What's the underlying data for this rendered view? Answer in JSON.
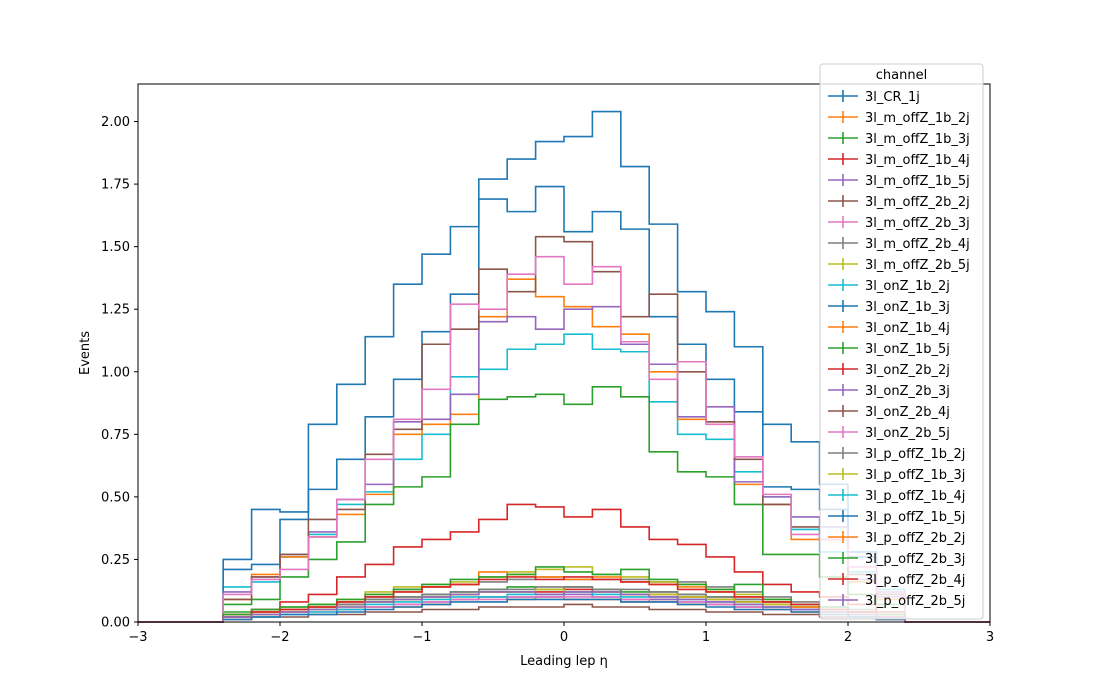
{
  "chart_data": {
    "type": "line",
    "drawstyle": "steps-post",
    "xlabel": "Leading lep η",
    "ylabel": "Events",
    "xlim": [
      -3,
      3
    ],
    "ylim": [
      0,
      2.15
    ],
    "xticks": [
      -3,
      -2,
      -1,
      0,
      1,
      2,
      3
    ],
    "xtick_labels": [
      "−3",
      "−2",
      "−1",
      "0",
      "1",
      "2",
      "3"
    ],
    "yticks": [
      0,
      0.25,
      0.5,
      0.75,
      1.0,
      1.25,
      1.5,
      1.75,
      2.0
    ],
    "ytick_labels": [
      "0.00",
      "0.25",
      "0.50",
      "0.75",
      "1.00",
      "1.25",
      "1.50",
      "1.75",
      "2.00"
    ],
    "grid": false,
    "legend": {
      "title": "channel",
      "placement": "top-right"
    },
    "x_edges": [
      -3.0,
      -2.8,
      -2.6,
      -2.4,
      -2.2,
      -2.0,
      -1.8,
      -1.6,
      -1.4,
      -1.2,
      -1.0,
      -0.8,
      -0.6,
      -0.4,
      -0.2,
      0.0,
      0.2,
      0.4,
      0.6,
      0.8,
      1.0,
      1.2,
      1.4,
      1.6,
      1.8,
      2.0,
      2.2,
      2.4,
      2.6,
      2.8,
      3.0
    ],
    "series": [
      {
        "name": "3l_CR_1j",
        "color": "#1f77b4",
        "values": [
          0,
          0,
          0,
          0.25,
          0.45,
          0.44,
          0.79,
          0.95,
          1.14,
          1.35,
          1.47,
          1.58,
          1.77,
          1.85,
          1.92,
          1.94,
          2.04,
          1.82,
          1.59,
          1.32,
          1.24,
          1.1,
          0.79,
          0.72,
          0.55,
          0.28,
          0.12,
          0,
          0,
          0
        ]
      },
      {
        "name": "3l_m_offZ_1b_2j",
        "color": "#ff7f0e",
        "values": [
          0,
          0,
          0,
          0.02,
          0.03,
          0.04,
          0.05,
          0.05,
          0.06,
          0.06,
          0.07,
          0.09,
          0.1,
          0.09,
          0.1,
          0.09,
          0.09,
          0.08,
          0.09,
          0.07,
          0.07,
          0.06,
          0.05,
          0.04,
          0.03,
          0.02,
          0.01,
          0,
          0,
          0
        ]
      },
      {
        "name": "3l_m_offZ_1b_3j",
        "color": "#2ca02c",
        "values": [
          0,
          0,
          0,
          0.04,
          0.05,
          0.06,
          0.07,
          0.07,
          0.09,
          0.1,
          0.11,
          0.12,
          0.13,
          0.14,
          0.13,
          0.14,
          0.13,
          0.12,
          0.12,
          0.11,
          0.1,
          0.09,
          0.08,
          0.07,
          0.05,
          0.04,
          0.02,
          0,
          0,
          0
        ]
      },
      {
        "name": "3l_m_offZ_1b_4j",
        "color": "#d62728",
        "values": [
          0,
          0,
          0,
          0.03,
          0.04,
          0.05,
          0.06,
          0.07,
          0.08,
          0.09,
          0.1,
          0.11,
          0.12,
          0.12,
          0.12,
          0.13,
          0.12,
          0.11,
          0.11,
          0.1,
          0.09,
          0.08,
          0.07,
          0.06,
          0.05,
          0.03,
          0.02,
          0,
          0,
          0
        ]
      },
      {
        "name": "3l_m_offZ_1b_5j",
        "color": "#9467bd",
        "values": [
          0,
          0,
          0,
          0.02,
          0.03,
          0.04,
          0.05,
          0.05,
          0.06,
          0.07,
          0.08,
          0.09,
          0.1,
          0.1,
          0.1,
          0.11,
          0.1,
          0.09,
          0.09,
          0.08,
          0.07,
          0.06,
          0.06,
          0.05,
          0.04,
          0.03,
          0.02,
          0,
          0,
          0
        ]
      },
      {
        "name": "3l_m_offZ_2b_2j",
        "color": "#8c564b",
        "values": [
          0,
          0,
          0,
          0.01,
          0.02,
          0.02,
          0.03,
          0.03,
          0.04,
          0.04,
          0.05,
          0.05,
          0.06,
          0.06,
          0.06,
          0.07,
          0.06,
          0.06,
          0.05,
          0.05,
          0.04,
          0.04,
          0.03,
          0.03,
          0.02,
          0.02,
          0.01,
          0,
          0,
          0
        ]
      },
      {
        "name": "3l_m_offZ_2b_3j",
        "color": "#e377c2",
        "values": [
          0,
          0,
          0,
          0.02,
          0.03,
          0.04,
          0.04,
          0.05,
          0.06,
          0.07,
          0.08,
          0.09,
          0.09,
          0.1,
          0.1,
          0.1,
          0.1,
          0.09,
          0.08,
          0.08,
          0.07,
          0.06,
          0.05,
          0.05,
          0.04,
          0.03,
          0.02,
          0,
          0,
          0
        ]
      },
      {
        "name": "3l_m_offZ_2b_4j",
        "color": "#7f7f7f",
        "values": [
          0,
          0,
          0,
          0.03,
          0.04,
          0.05,
          0.06,
          0.08,
          0.1,
          0.13,
          0.14,
          0.15,
          0.16,
          0.17,
          0.18,
          0.17,
          0.17,
          0.17,
          0.16,
          0.16,
          0.14,
          0.12,
          0.1,
          0.08,
          0.06,
          0.05,
          0.03,
          0,
          0,
          0
        ]
      },
      {
        "name": "3l_m_offZ_2b_5j",
        "color": "#bcbd22",
        "values": [
          0,
          0,
          0,
          0.03,
          0.04,
          0.05,
          0.07,
          0.09,
          0.12,
          0.14,
          0.15,
          0.16,
          0.18,
          0.2,
          0.21,
          0.22,
          0.19,
          0.18,
          0.16,
          0.15,
          0.13,
          0.11,
          0.09,
          0.07,
          0.05,
          0.04,
          0.03,
          0,
          0,
          0
        ]
      },
      {
        "name": "3l_onZ_1b_2j",
        "color": "#17becf",
        "values": [
          0,
          0,
          0,
          0.14,
          0.16,
          0.26,
          0.35,
          0.47,
          0.52,
          0.65,
          0.75,
          0.98,
          1.01,
          1.09,
          1.11,
          1.15,
          1.09,
          1.08,
          0.88,
          0.75,
          0.73,
          0.6,
          0.5,
          0.37,
          0.28,
          0.2,
          0.13,
          0,
          0,
          0
        ]
      },
      {
        "name": "3l_onZ_1b_3j",
        "color": "#1f77b4",
        "values": [
          0,
          0,
          0,
          0.21,
          0.23,
          0.41,
          0.53,
          0.65,
          0.82,
          0.97,
          1.16,
          1.31,
          1.69,
          1.64,
          1.74,
          1.56,
          1.64,
          1.57,
          1.22,
          1.11,
          0.97,
          0.84,
          0.54,
          0.53,
          0.45,
          0.26,
          0.12,
          0,
          0,
          0
        ]
      },
      {
        "name": "3l_onZ_1b_4j",
        "color": "#ff7f0e",
        "values": [
          0,
          0,
          0,
          0.09,
          0.19,
          0.26,
          0.34,
          0.43,
          0.51,
          0.75,
          0.79,
          0.83,
          1.22,
          1.37,
          1.3,
          1.26,
          1.18,
          1.15,
          1.0,
          0.81,
          0.8,
          0.55,
          0.47,
          0.33,
          0.33,
          0.16,
          0.09,
          0,
          0,
          0
        ]
      },
      {
        "name": "3l_onZ_1b_5j",
        "color": "#2ca02c",
        "values": [
          0,
          0,
          0,
          0.07,
          0.09,
          0.18,
          0.25,
          0.32,
          0.47,
          0.54,
          0.58,
          0.79,
          0.89,
          0.9,
          0.91,
          0.87,
          0.94,
          0.9,
          0.68,
          0.6,
          0.58,
          0.47,
          0.27,
          0.27,
          0.18,
          0.11,
          0.07,
          0,
          0,
          0
        ]
      },
      {
        "name": "3l_onZ_2b_2j",
        "color": "#d62728",
        "values": [
          0,
          0,
          0,
          0.03,
          0.05,
          0.08,
          0.11,
          0.18,
          0.23,
          0.3,
          0.33,
          0.36,
          0.41,
          0.47,
          0.46,
          0.42,
          0.45,
          0.38,
          0.33,
          0.31,
          0.26,
          0.2,
          0.15,
          0.12,
          0.1,
          0.07,
          0.04,
          0,
          0,
          0
        ]
      },
      {
        "name": "3l_onZ_2b_3j",
        "color": "#9467bd",
        "values": [
          0,
          0,
          0,
          0.12,
          0.18,
          0.27,
          0.36,
          0.49,
          0.55,
          0.8,
          0.81,
          0.91,
          1.2,
          1.22,
          1.17,
          1.25,
          1.26,
          1.11,
          1.03,
          0.82,
          0.86,
          0.56,
          0.5,
          0.42,
          0.38,
          0.17,
          0.1,
          0,
          0,
          0
        ]
      },
      {
        "name": "3l_onZ_2b_4j",
        "color": "#8c564b",
        "values": [
          0,
          0,
          0,
          0.09,
          0.18,
          0.27,
          0.41,
          0.45,
          0.67,
          0.77,
          1.11,
          1.17,
          1.41,
          1.32,
          1.54,
          1.52,
          1.4,
          1.22,
          1.31,
          1.0,
          0.8,
          0.65,
          0.47,
          0.38,
          0.33,
          0.19,
          0.11,
          0,
          0,
          0
        ]
      },
      {
        "name": "3l_onZ_2b_5j",
        "color": "#e377c2",
        "values": [
          0,
          0,
          0,
          0.11,
          0.17,
          0.21,
          0.34,
          0.49,
          0.65,
          0.81,
          0.93,
          1.27,
          1.25,
          1.39,
          1.46,
          1.35,
          1.42,
          1.12,
          0.97,
          1.04,
          0.79,
          0.66,
          0.51,
          0.35,
          0.33,
          0.22,
          0.12,
          0,
          0,
          0
        ]
      },
      {
        "name": "3l_p_offZ_1b_2j",
        "color": "#7f7f7f",
        "values": [
          0,
          0,
          0,
          0.03,
          0.04,
          0.05,
          0.06,
          0.07,
          0.09,
          0.1,
          0.11,
          0.12,
          0.13,
          0.13,
          0.14,
          0.14,
          0.13,
          0.13,
          0.12,
          0.11,
          0.1,
          0.09,
          0.08,
          0.06,
          0.05,
          0.04,
          0.02,
          0,
          0,
          0
        ]
      },
      {
        "name": "3l_p_offZ_1b_3j",
        "color": "#bcbd22",
        "values": [
          0,
          0,
          0,
          0.02,
          0.03,
          0.04,
          0.05,
          0.06,
          0.08,
          0.09,
          0.1,
          0.11,
          0.12,
          0.12,
          0.13,
          0.12,
          0.12,
          0.11,
          0.11,
          0.1,
          0.09,
          0.08,
          0.07,
          0.06,
          0.04,
          0.03,
          0.02,
          0,
          0,
          0
        ]
      },
      {
        "name": "3l_p_offZ_1b_4j",
        "color": "#17becf",
        "values": [
          0,
          0,
          0,
          0.02,
          0.02,
          0.03,
          0.04,
          0.05,
          0.07,
          0.08,
          0.09,
          0.1,
          0.1,
          0.11,
          0.11,
          0.12,
          0.11,
          0.1,
          0.1,
          0.09,
          0.08,
          0.07,
          0.06,
          0.05,
          0.04,
          0.03,
          0.02,
          0,
          0,
          0
        ]
      },
      {
        "name": "3l_p_offZ_1b_5j",
        "color": "#1f77b4",
        "values": [
          0,
          0,
          0,
          0.01,
          0.02,
          0.03,
          0.03,
          0.04,
          0.05,
          0.06,
          0.07,
          0.08,
          0.08,
          0.09,
          0.09,
          0.09,
          0.09,
          0.08,
          0.08,
          0.07,
          0.06,
          0.05,
          0.05,
          0.04,
          0.03,
          0.02,
          0.01,
          0,
          0,
          0
        ]
      },
      {
        "name": "3l_p_offZ_2b_2j",
        "color": "#ff7f0e",
        "values": [
          0,
          0,
          0,
          0.03,
          0.04,
          0.05,
          0.06,
          0.08,
          0.11,
          0.12,
          0.14,
          0.15,
          0.2,
          0.19,
          0.18,
          0.17,
          0.18,
          0.16,
          0.15,
          0.14,
          0.12,
          0.1,
          0.08,
          0.06,
          0.05,
          0.04,
          0.02,
          0,
          0,
          0
        ]
      },
      {
        "name": "3l_p_offZ_2b_3j",
        "color": "#2ca02c",
        "values": [
          0,
          0,
          0,
          0.03,
          0.05,
          0.06,
          0.07,
          0.09,
          0.11,
          0.13,
          0.15,
          0.17,
          0.18,
          0.19,
          0.22,
          0.2,
          0.19,
          0.21,
          0.17,
          0.15,
          0.13,
          0.15,
          0.09,
          0.07,
          0.06,
          0.04,
          0.03,
          0,
          0,
          0
        ]
      },
      {
        "name": "3l_p_offZ_2b_4j",
        "color": "#d62728",
        "values": [
          0,
          0,
          0,
          0.02,
          0.04,
          0.05,
          0.06,
          0.08,
          0.1,
          0.12,
          0.14,
          0.15,
          0.17,
          0.18,
          0.17,
          0.18,
          0.17,
          0.16,
          0.15,
          0.13,
          0.12,
          0.1,
          0.08,
          0.07,
          0.05,
          0.04,
          0.02,
          0,
          0,
          0
        ]
      },
      {
        "name": "3l_p_offZ_2b_5j",
        "color": "#9467bd",
        "values": [
          0,
          0,
          0,
          0.02,
          0.03,
          0.04,
          0.05,
          0.06,
          0.08,
          0.09,
          0.1,
          0.11,
          0.12,
          0.12,
          0.11,
          0.12,
          0.12,
          0.11,
          0.1,
          0.09,
          0.08,
          0.07,
          0.06,
          0.05,
          0.04,
          0.03,
          0.02,
          0,
          0,
          0
        ]
      }
    ]
  }
}
